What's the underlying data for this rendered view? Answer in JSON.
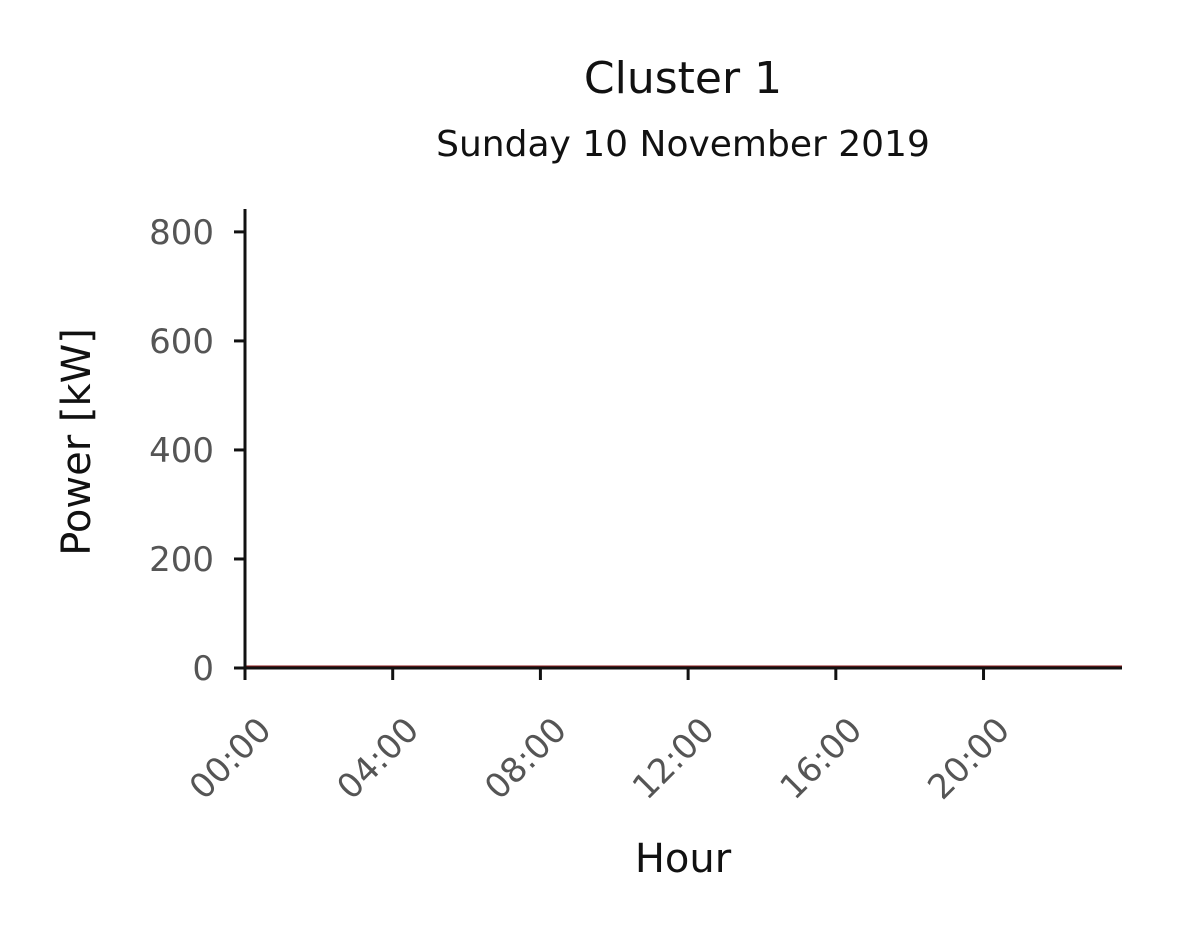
{
  "chart_data": {
    "type": "line",
    "title": "Cluster 1",
    "subtitle": "Sunday 10 November 2019",
    "xlabel": "Hour",
    "ylabel": "Power [kW]",
    "ylim": [
      0,
      842
    ],
    "xlim": [
      "00:00",
      "23:45"
    ],
    "yticks": [
      0,
      200,
      400,
      600,
      800
    ],
    "xticks": [
      "00:00",
      "04:00",
      "08:00",
      "12:00",
      "16:00",
      "20:00"
    ],
    "grid": false,
    "legend": "none",
    "series": [
      {
        "color": "#8b1a1a",
        "x": [
          "00:00",
          "02:00",
          "04:00",
          "06:00",
          "08:00",
          "10:00",
          "12:00",
          "14:00",
          "16:00",
          "18:00",
          "20:00",
          "22:00",
          "23:45"
        ],
        "values": [
          0,
          0,
          0,
          0,
          0,
          0,
          0,
          0,
          0,
          0,
          0,
          0,
          0
        ]
      }
    ]
  }
}
